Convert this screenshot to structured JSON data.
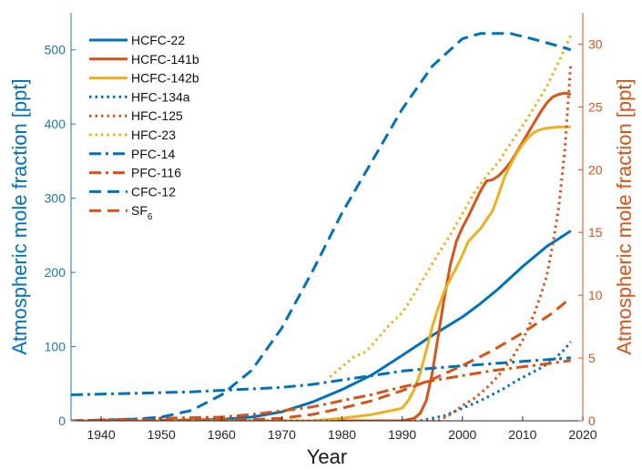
{
  "chart_data": {
    "type": "line",
    "xlabel": "Year",
    "ylabel_left": "Atmospheric mole fraction [ppt]",
    "ylabel_right": "Atmospheric mole fraction [ppt]",
    "xlim": [
      1935,
      2020
    ],
    "ylim_left": [
      0,
      550
    ],
    "ylim_right": [
      0,
      32.5
    ],
    "x_ticks": [
      1940,
      1950,
      1960,
      1970,
      1980,
      1990,
      2000,
      2010,
      2020
    ],
    "y_ticks_left": [
      0,
      100,
      200,
      300,
      400,
      500
    ],
    "y_ticks_right": [
      0,
      5,
      10,
      15,
      20,
      25,
      30
    ],
    "grid": false,
    "legend_position": "top-left",
    "colors": {
      "blue": "#1f77b4",
      "orange": "#d95319",
      "yellow": "#edb120",
      "axis": "#262626"
    },
    "series": [
      {
        "name": "HCFC-22",
        "axis": "left",
        "color": "#0072bd",
        "dash": "solid",
        "points": [
          [
            1935,
            0
          ],
          [
            1950,
            0
          ],
          [
            1960,
            2
          ],
          [
            1965,
            5
          ],
          [
            1970,
            12
          ],
          [
            1975,
            25
          ],
          [
            1980,
            42
          ],
          [
            1985,
            62
          ],
          [
            1990,
            88
          ],
          [
            1995,
            115
          ],
          [
            2000,
            140
          ],
          [
            2003,
            158
          ],
          [
            2006,
            178
          ],
          [
            2010,
            208
          ],
          [
            2014,
            235
          ],
          [
            2018,
            256
          ]
        ]
      },
      {
        "name": "HCFC-141b",
        "axis": "right",
        "color": "#d95319",
        "dash": "solid",
        "points": [
          [
            1935,
            0
          ],
          [
            1990,
            0
          ],
          [
            1992,
            0.2
          ],
          [
            1993,
            0.6
          ],
          [
            1994,
            1.6
          ],
          [
            1995,
            3.8
          ],
          [
            1996,
            6.8
          ],
          [
            1997,
            9.8
          ],
          [
            1998,
            12.4
          ],
          [
            1999,
            14.3
          ],
          [
            2000,
            15.4
          ],
          [
            2001,
            16.3
          ],
          [
            2002,
            17.3
          ],
          [
            2003,
            18.3
          ],
          [
            2004,
            19.1
          ],
          [
            2005,
            19.2
          ],
          [
            2006,
            19.5
          ],
          [
            2007,
            20.0
          ],
          [
            2008,
            20.6
          ],
          [
            2009,
            21.4
          ],
          [
            2010,
            22.2
          ],
          [
            2011,
            23.0
          ],
          [
            2012,
            23.8
          ],
          [
            2013,
            24.6
          ],
          [
            2014,
            25.3
          ],
          [
            2015,
            25.8
          ],
          [
            2016,
            26.0
          ],
          [
            2017,
            26.1
          ],
          [
            2018,
            26.0
          ]
        ]
      },
      {
        "name": "HCFC-142b",
        "axis": "right",
        "color": "#edb120",
        "dash": "solid",
        "points": [
          [
            1935,
            0
          ],
          [
            1975,
            0
          ],
          [
            1980,
            0.2
          ],
          [
            1985,
            0.5
          ],
          [
            1989,
            0.9
          ],
          [
            1990,
            1.0
          ],
          [
            1991,
            1.6
          ],
          [
            1992,
            2.5
          ],
          [
            1993,
            3.8
          ],
          [
            1994,
            5.6
          ],
          [
            1995,
            7.5
          ],
          [
            1996,
            9.0
          ],
          [
            1997,
            10.3
          ],
          [
            1998,
            11.3
          ],
          [
            1999,
            12.2
          ],
          [
            2000,
            13.2
          ],
          [
            2001,
            14.3
          ],
          [
            2002,
            14.8
          ],
          [
            2003,
            15.3
          ],
          [
            2004,
            16.0
          ],
          [
            2005,
            16.7
          ],
          [
            2006,
            18.0
          ],
          [
            2007,
            19.4
          ],
          [
            2008,
            20.4
          ],
          [
            2009,
            21.3
          ],
          [
            2010,
            22.0
          ],
          [
            2011,
            22.6
          ],
          [
            2012,
            23.0
          ],
          [
            2013,
            23.2
          ],
          [
            2014,
            23.3
          ],
          [
            2016,
            23.4
          ],
          [
            2018,
            23.4
          ]
        ]
      },
      {
        "name": "HFC-134a",
        "axis": "right",
        "color": "#0072bd",
        "dash": "dot",
        "points": [
          [
            1935,
            0
          ],
          [
            1993,
            0
          ],
          [
            1995,
            0.2
          ],
          [
            1997,
            0.4
          ],
          [
            1999,
            0.8
          ],
          [
            2001,
            1.2
          ],
          [
            2003,
            1.6
          ],
          [
            2005,
            2.1
          ],
          [
            2007,
            2.6
          ],
          [
            2009,
            3.2
          ],
          [
            2011,
            3.7
          ],
          [
            2013,
            4.2
          ],
          [
            2015,
            4.8
          ],
          [
            2017,
            5.7
          ],
          [
            2018,
            6.3
          ]
        ]
      },
      {
        "name": "HFC-125",
        "axis": "right",
        "color": "#d95319",
        "dash": "dot",
        "points": [
          [
            1935,
            0
          ],
          [
            1996,
            0
          ],
          [
            1998,
            0.5
          ],
          [
            2000,
            1.2
          ],
          [
            2002,
            1.8
          ],
          [
            2004,
            2.6
          ],
          [
            2006,
            3.6
          ],
          [
            2008,
            4.8
          ],
          [
            2010,
            6.4
          ],
          [
            2012,
            8.6
          ],
          [
            2013,
            10.0
          ],
          [
            2014,
            11.5
          ],
          [
            2015,
            14.0
          ],
          [
            2016,
            17.0
          ],
          [
            2017,
            21.5
          ],
          [
            2018,
            28.5
          ]
        ]
      },
      {
        "name": "HFC-23",
        "axis": "right",
        "color": "#edb120",
        "dash": "dot",
        "points": [
          [
            1978,
            3.5
          ],
          [
            1980,
            4.3
          ],
          [
            1982,
            5.1
          ],
          [
            1984,
            5.5
          ],
          [
            1986,
            6.6
          ],
          [
            1988,
            7.7
          ],
          [
            1990,
            8.6
          ],
          [
            1992,
            10.1
          ],
          [
            1994,
            11.7
          ],
          [
            1996,
            13.3
          ],
          [
            1998,
            14.8
          ],
          [
            2000,
            16.5
          ],
          [
            2002,
            18.2
          ],
          [
            2004,
            19.5
          ],
          [
            2006,
            20.6
          ],
          [
            2008,
            22.1
          ],
          [
            2010,
            23.5
          ],
          [
            2012,
            25.0
          ],
          [
            2014,
            26.6
          ],
          [
            2016,
            28.6
          ],
          [
            2018,
            30.7
          ]
        ]
      },
      {
        "name": "PFC-14",
        "axis": "left",
        "color": "#0072bd",
        "dash": "dashdot",
        "points": [
          [
            1935,
            35
          ],
          [
            1945,
            37
          ],
          [
            1955,
            39
          ],
          [
            1965,
            43
          ],
          [
            1970,
            45
          ],
          [
            1975,
            49
          ],
          [
            1980,
            55
          ],
          [
            1985,
            61
          ],
          [
            1990,
            67
          ],
          [
            1995,
            71
          ],
          [
            2000,
            74
          ],
          [
            2005,
            77
          ],
          [
            2010,
            80
          ],
          [
            2015,
            83
          ],
          [
            2018,
            85
          ]
        ]
      },
      {
        "name": "PFC-116",
        "axis": "right",
        "color": "#d95319",
        "dash": "dashdot",
        "points": [
          [
            1935,
            0
          ],
          [
            1950,
            0.2
          ],
          [
            1960,
            0.3
          ],
          [
            1965,
            0.5
          ],
          [
            1970,
            0.8
          ],
          [
            1975,
            1.1
          ],
          [
            1980,
            1.6
          ],
          [
            1985,
            2.1
          ],
          [
            1990,
            2.7
          ],
          [
            1995,
            3.2
          ],
          [
            2000,
            3.6
          ],
          [
            2005,
            4.0
          ],
          [
            2010,
            4.3
          ],
          [
            2015,
            4.6
          ],
          [
            2018,
            4.8
          ]
        ]
      },
      {
        "name": "CFC-12",
        "axis": "left",
        "color": "#0072bd",
        "dash": "dash",
        "points": [
          [
            1935,
            0
          ],
          [
            1945,
            2
          ],
          [
            1950,
            5
          ],
          [
            1955,
            14
          ],
          [
            1960,
            35
          ],
          [
            1965,
            68
          ],
          [
            1970,
            125
          ],
          [
            1975,
            200
          ],
          [
            1980,
            280
          ],
          [
            1985,
            350
          ],
          [
            1990,
            420
          ],
          [
            1995,
            478
          ],
          [
            2000,
            515
          ],
          [
            2003,
            522
          ],
          [
            2008,
            522
          ],
          [
            2012,
            514
          ],
          [
            2016,
            505
          ],
          [
            2018,
            500
          ]
        ]
      },
      {
        "name": "SF6",
        "label_main": "SF",
        "label_sub": "6",
        "axis": "right",
        "color": "#d95319",
        "dash": "dash",
        "points": [
          [
            1935,
            0
          ],
          [
            1965,
            0.1
          ],
          [
            1970,
            0.2
          ],
          [
            1975,
            0.5
          ],
          [
            1980,
            1.0
          ],
          [
            1985,
            1.6
          ],
          [
            1990,
            2.4
          ],
          [
            1995,
            3.3
          ],
          [
            2000,
            4.4
          ],
          [
            2005,
            5.6
          ],
          [
            2010,
            7.0
          ],
          [
            2015,
            8.6
          ],
          [
            2018,
            9.8
          ]
        ]
      }
    ]
  }
}
